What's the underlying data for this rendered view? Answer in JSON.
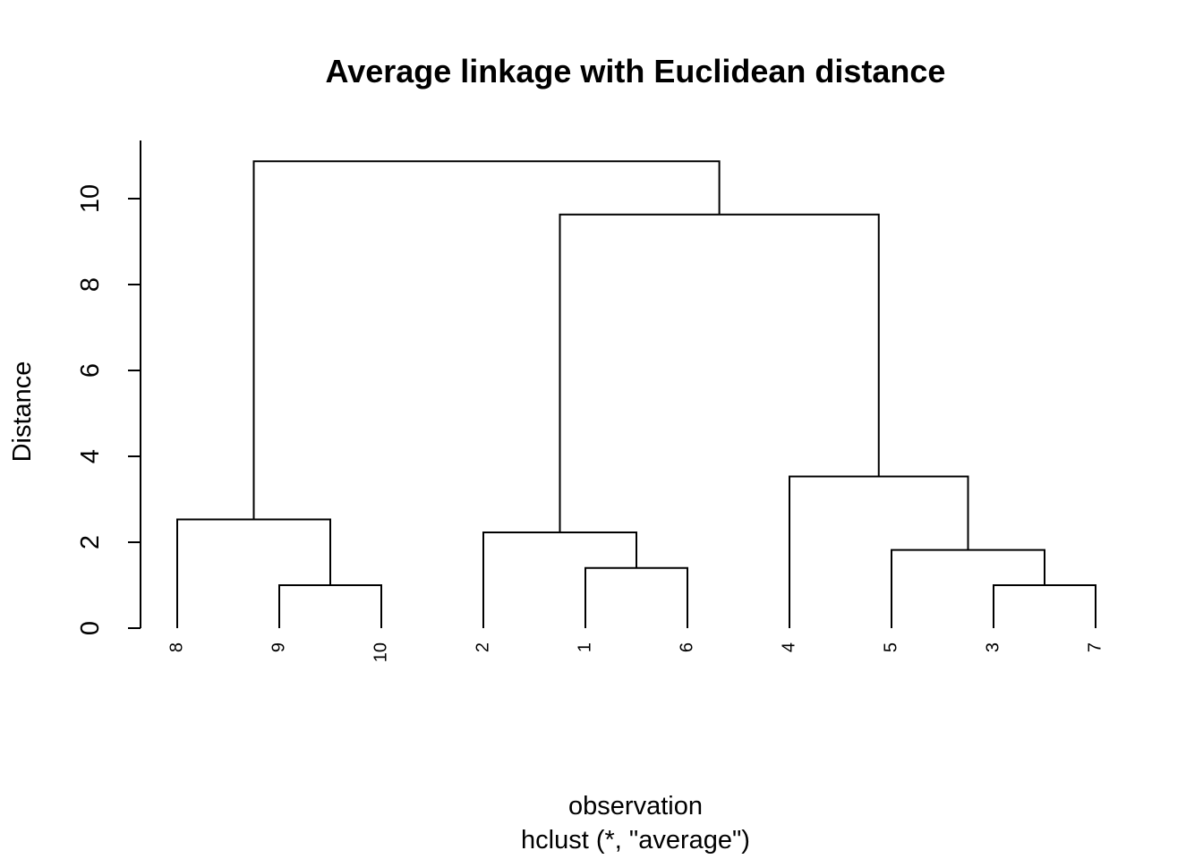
{
  "chart_data": {
    "type": "dendrogram",
    "title": "Average linkage with Euclidean distance",
    "xlabel": "observation",
    "sublabel": "hclust (*, \"average\")",
    "ylabel": "Distance",
    "ylim": [
      0,
      11
    ],
    "yticks": [
      0,
      2,
      4,
      6,
      8,
      10
    ],
    "grid": false,
    "leaf_order": [
      "8",
      "9",
      "10",
      "2",
      "1",
      "6",
      "4",
      "5",
      "3",
      "7"
    ],
    "merges": [
      {
        "id": "m1",
        "left": "9",
        "right": "10",
        "height": 1.0
      },
      {
        "id": "m2",
        "left": "3",
        "right": "7",
        "height": 1.0
      },
      {
        "id": "m3",
        "left": "1",
        "right": "6",
        "height": 1.4
      },
      {
        "id": "m4",
        "left": "5",
        "right": "m2",
        "height": 1.82
      },
      {
        "id": "m5",
        "left": "2",
        "right": "m3",
        "height": 2.23
      },
      {
        "id": "m6",
        "left": "8",
        "right": "m1",
        "height": 2.53
      },
      {
        "id": "m7",
        "left": "4",
        "right": "m4",
        "height": 3.53
      },
      {
        "id": "m8",
        "left": "m5",
        "right": "m7",
        "height": 9.63
      },
      {
        "id": "m9",
        "left": "m6",
        "right": "m8",
        "height": 10.87
      }
    ]
  }
}
